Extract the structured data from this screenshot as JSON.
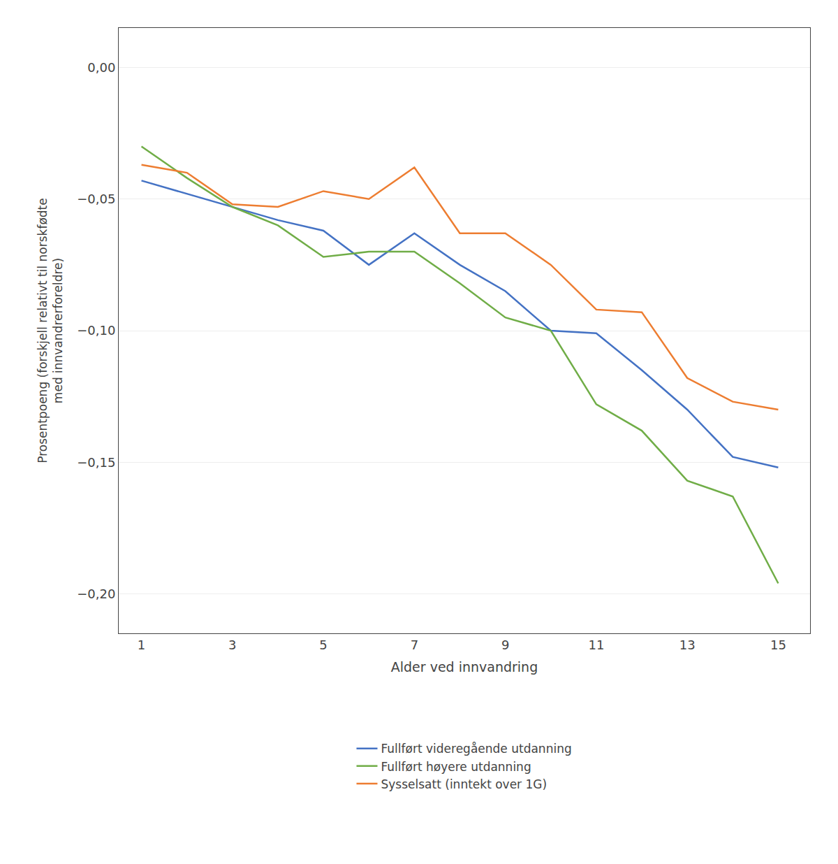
{
  "chart_data": {
    "type": "line",
    "x": [
      1,
      2,
      3,
      4,
      5,
      6,
      7,
      8,
      9,
      10,
      11,
      12,
      13,
      14,
      15
    ],
    "series": [
      {
        "name": "Fullført videregående utdanning",
        "color": "#4472C4",
        "values": [
          -0.043,
          -0.048,
          -0.053,
          -0.058,
          -0.062,
          -0.075,
          -0.063,
          -0.075,
          -0.085,
          -0.1,
          -0.101,
          -0.115,
          -0.13,
          -0.148,
          -0.152
        ]
      },
      {
        "name": "Fullført høyere utdanning",
        "color": "#70AD47",
        "values": [
          -0.03,
          -0.042,
          -0.053,
          -0.06,
          -0.072,
          -0.07,
          -0.07,
          -0.082,
          -0.095,
          -0.1,
          -0.128,
          -0.138,
          -0.157,
          -0.163,
          -0.196
        ]
      },
      {
        "name": "Sysselsatt (inntekt over 1G)",
        "color": "#ED7D31",
        "values": [
          -0.037,
          -0.04,
          -0.052,
          -0.053,
          -0.047,
          -0.05,
          -0.038,
          -0.063,
          -0.063,
          -0.075,
          -0.092,
          -0.093,
          -0.118,
          -0.127,
          -0.13
        ]
      }
    ],
    "xlabel": "Alder ved innvandring",
    "ylabel": "Prosentpoeng (forskjell relativt til norskfødte\nmed innvandrerforeldre)",
    "xlim": [
      0.5,
      15.7
    ],
    "xticks": [
      1,
      3,
      5,
      7,
      9,
      11,
      13,
      15
    ],
    "ylim": [
      -0.215,
      0.015
    ],
    "yticks": [
      {
        "value": 0.0,
        "label": "0,00"
      },
      {
        "value": -0.05,
        "label": "−0,05"
      },
      {
        "value": -0.1,
        "label": "−0,10"
      },
      {
        "value": -0.15,
        "label": "−0,15"
      },
      {
        "value": -0.2,
        "label": "−0,20"
      }
    ],
    "grid": "y",
    "legend": "bottom"
  }
}
